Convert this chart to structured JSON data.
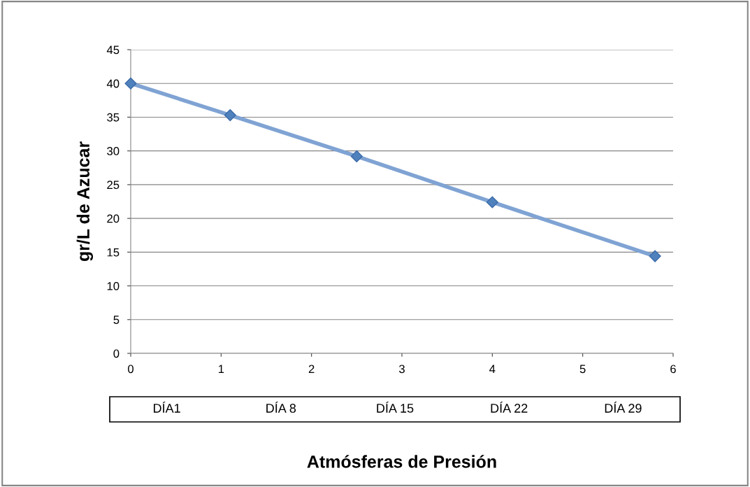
{
  "chart_data": {
    "type": "line",
    "xlabel": "Atmósferas de Presión",
    "ylabel": "gr/L de Azucar",
    "x": [
      0,
      1.1,
      2.5,
      4.0,
      5.8
    ],
    "series": [
      {
        "color": "#7fa3d3",
        "values": [
          40,
          35.3,
          29.2,
          22.4,
          14.4
        ]
      }
    ],
    "xlim": [
      0,
      6
    ],
    "xticks": [
      0,
      1,
      2,
      3,
      4,
      5,
      6
    ],
    "ylim": [
      0,
      45
    ],
    "yticks": [
      0,
      5,
      10,
      15,
      20,
      25,
      30,
      35,
      40,
      45
    ],
    "grid": "y",
    "marker": "diamond",
    "line_style": "solid",
    "annotations": [
      "DÍA1",
      "DÍA 8",
      "DÍA 15",
      "DÍA 22",
      "DÍA 29"
    ]
  }
}
